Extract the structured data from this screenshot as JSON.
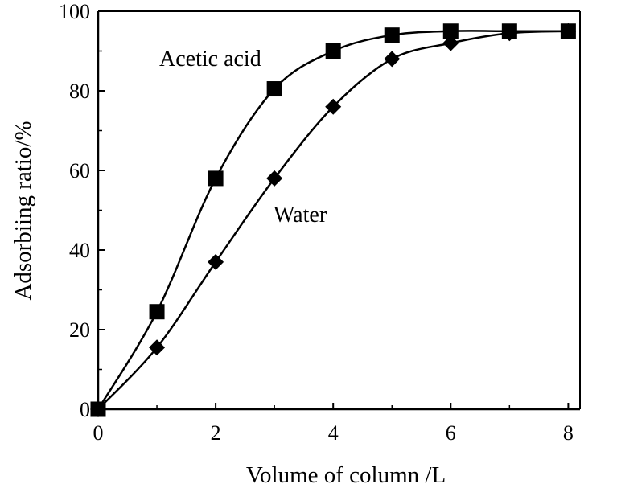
{
  "chart_data": {
    "type": "line",
    "xlabel": "Volume  of  column /L",
    "ylabel": "Adsorbiing ratio/%",
    "xlim": [
      0,
      8.2
    ],
    "ylim": [
      0,
      100
    ],
    "xticks": [
      0,
      2,
      4,
      6,
      8
    ],
    "yticks": [
      0,
      20,
      40,
      60,
      80,
      100
    ],
    "grid": false,
    "legend": "none",
    "series": [
      {
        "name": "Acetic acid",
        "marker": "square",
        "color": "#000000",
        "x": [
          0,
          1,
          2,
          3,
          4,
          5,
          6,
          7,
          8
        ],
        "y": [
          0,
          24.5,
          58,
          80.5,
          90,
          94,
          95,
          95,
          95
        ]
      },
      {
        "name": "Water",
        "marker": "diamond",
        "color": "#000000",
        "x": [
          0,
          1,
          2,
          3,
          4,
          5,
          6,
          7,
          8
        ],
        "y": [
          0,
          15.5,
          37,
          58,
          76,
          88,
          92,
          94.5,
          95
        ]
      }
    ]
  }
}
